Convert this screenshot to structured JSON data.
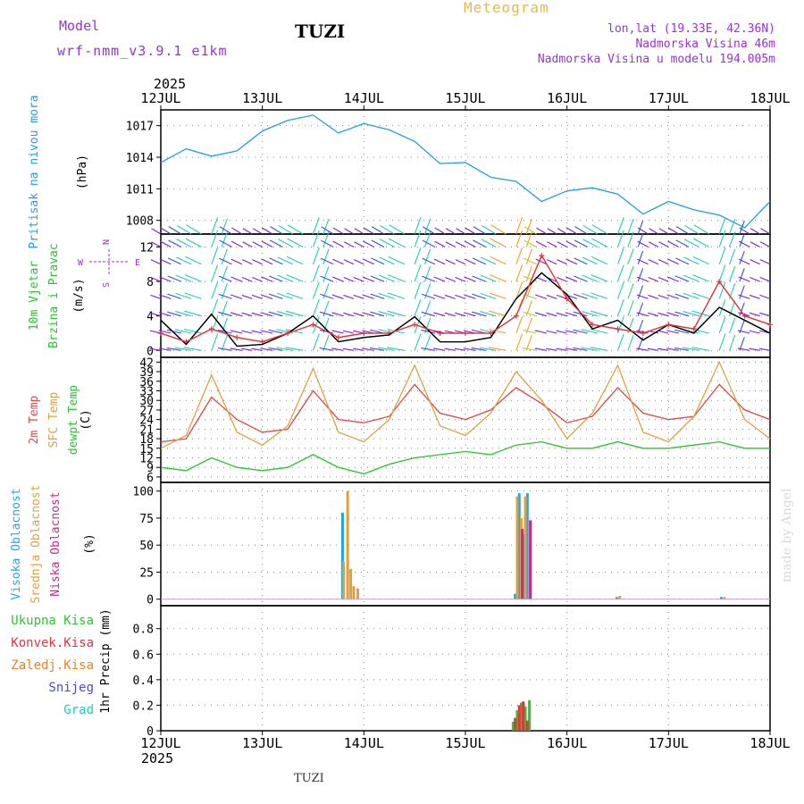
{
  "header": {
    "model_label": "Model",
    "model_name": "wrf-nmm_v3.9.1 e1km",
    "station": "TUZI",
    "title": "Meteogram",
    "coords": "lon,lat (19.33E, 42.36N)",
    "elevation": "Nadmorska Visina 46m",
    "model_elevation": "Nadmorska Visina u modelu 194.005m"
  },
  "time_axis": {
    "year": "2025",
    "labels": [
      "12JUL",
      "13JUL",
      "14JUL",
      "15JUL",
      "16JUL",
      "17JUL",
      "18JUL"
    ]
  },
  "footer": {
    "station": "TUZI",
    "watermark": "made by Angel"
  },
  "colors": {
    "pressure": "#1e9fe8",
    "wind_speed": "#000000",
    "gust": "#e8323c",
    "temp2m": "#e04545",
    "sfc_temp": "#e0a040",
    "dewpt": "#22c82a",
    "cloud_high": "#1ea8e8",
    "cloud_mid": "#e0a040",
    "cloud_low": "#d81f8a",
    "precip_total": "#33c233",
    "precip_conv": "#e8323c",
    "precip_frz": "#f07f2a",
    "precip_snow": "#4a4adf",
    "precip_hail": "#22ccb8"
  },
  "chart_data": [
    {
      "type": "line",
      "panel": "pressure",
      "ylabel_lines": [
        "Pritisak na nivou mora",
        "(hPa)"
      ],
      "yticks": [
        1008,
        1011,
        1014,
        1017
      ],
      "ylim": [
        1006.7,
        1018.5
      ],
      "grid": true,
      "series": [
        {
          "x": [
            0,
            0.25,
            0.5,
            0.75,
            1.0,
            1.25,
            1.5,
            1.75,
            2.0,
            2.25,
            2.5,
            2.75,
            3.0,
            3.25,
            3.5,
            3.75,
            4.0,
            4.25,
            4.5,
            4.75,
            5.0,
            5.25,
            5.5,
            5.75,
            6.0
          ],
          "y": [
            1013.5,
            1014.8,
            1014.1,
            1014.6,
            1016.5,
            1017.5,
            1018.0,
            1016.3,
            1017.2,
            1016.6,
            1015.5,
            1013.4,
            1013.5,
            1012.1,
            1011.7,
            1009.8,
            1010.8,
            1011.1,
            1010.5,
            1008.6,
            1009.8,
            1009.0,
            1008.5,
            1007.3,
            1009.8
          ]
        }
      ]
    },
    {
      "type": "line",
      "panel": "wind",
      "ylabel_lines": [
        "10m Vjetar",
        "Brzina i Pravac",
        "(m/s)"
      ],
      "compass": [
        "N",
        "E",
        "S",
        "W"
      ],
      "yticks": [
        0,
        4,
        8,
        12
      ],
      "ylim": [
        -0.8,
        13.5
      ],
      "grid": true,
      "series": [
        {
          "x": [
            0,
            0.25,
            0.5,
            0.75,
            1.0,
            1.25,
            1.5,
            1.75,
            2.0,
            2.25,
            2.5,
            2.75,
            3.0,
            3.25,
            3.5,
            3.75,
            4.0,
            4.25,
            4.5,
            4.75,
            5.0,
            5.25,
            5.5,
            5.75,
            6.0
          ],
          "y": [
            3.5,
            0.7,
            4.2,
            0.5,
            0.7,
            2.0,
            4.0,
            1.0,
            1.5,
            1.8,
            3.9,
            1.0,
            1.0,
            1.5,
            6.0,
            9.0,
            6.5,
            2.5,
            3.5,
            1.2,
            3.0,
            2.0,
            5.0,
            3.5,
            2.0
          ]
        },
        {
          "name": "gust",
          "x": [
            0,
            0.25,
            0.5,
            0.75,
            1.0,
            1.25,
            1.5,
            1.75,
            2.0,
            2.25,
            2.5,
            2.75,
            3.0,
            3.25,
            3.5,
            3.75,
            4.0,
            4.25,
            4.5,
            4.75,
            5.0,
            5.25,
            5.5,
            5.75,
            6.0
          ],
          "y": [
            2.0,
            1.0,
            2.5,
            1.5,
            1.0,
            2.0,
            3.0,
            1.5,
            2.0,
            2.0,
            3.0,
            2.0,
            2.0,
            2.0,
            4.0,
            11.0,
            6.0,
            3.0,
            2.5,
            2.0,
            3.0,
            2.5,
            8.0,
            4.0,
            3.0
          ]
        }
      ]
    },
    {
      "type": "line",
      "panel": "temperature",
      "ylabel_lines": [
        "2m Temp",
        "SFC Temp",
        "dewpt Temp",
        "(C)"
      ],
      "yticks": [
        6,
        9,
        12,
        15,
        18,
        21,
        24,
        27,
        30,
        33,
        36,
        39,
        42
      ],
      "ylim": [
        4.3,
        43.5
      ],
      "grid": true,
      "series": [
        {
          "name": "2m Temp",
          "x": [
            0,
            0.25,
            0.5,
            0.75,
            1.0,
            1.25,
            1.5,
            1.75,
            2.0,
            2.25,
            2.5,
            2.75,
            3.0,
            3.25,
            3.5,
            3.75,
            4.0,
            4.25,
            4.5,
            4.75,
            5.0,
            5.25,
            5.5,
            5.75,
            6.0
          ],
          "y": [
            17,
            18,
            31,
            24,
            20,
            21,
            33,
            24,
            23,
            25,
            35,
            26,
            24,
            27,
            34,
            29,
            23,
            25,
            34,
            26,
            24,
            25,
            35,
            27,
            24
          ]
        },
        {
          "name": "SFC Temp",
          "x": [
            0,
            0.25,
            0.5,
            0.75,
            1.0,
            1.25,
            1.5,
            1.75,
            2.0,
            2.25,
            2.5,
            2.75,
            3.0,
            3.25,
            3.5,
            3.75,
            4.0,
            4.25,
            4.5,
            4.75,
            5.0,
            5.25,
            5.5,
            5.75,
            6.0
          ],
          "y": [
            15,
            19,
            38,
            20,
            16,
            22,
            40,
            20,
            17,
            24,
            41,
            22,
            19,
            26,
            39,
            30,
            18,
            26,
            41,
            20,
            17,
            25,
            42,
            24,
            18
          ]
        },
        {
          "name": "dewpt Temp",
          "x": [
            0,
            0.25,
            0.5,
            0.75,
            1.0,
            1.25,
            1.5,
            1.75,
            2.0,
            2.25,
            2.5,
            2.75,
            3.0,
            3.25,
            3.5,
            3.75,
            4.0,
            4.25,
            4.5,
            4.75,
            5.0,
            5.25,
            5.5,
            5.75,
            6.0
          ],
          "y": [
            9,
            8,
            12,
            9,
            8,
            9,
            13,
            9,
            7,
            10,
            12,
            13,
            14,
            13,
            16,
            17,
            15,
            15,
            17,
            15,
            15,
            16,
            17,
            15,
            15
          ]
        }
      ]
    },
    {
      "type": "bar",
      "panel": "cloud",
      "ylabel_lines": [
        "Visoka Oblacnost",
        "Srednja Oblacnost",
        "Niska Oblacnost",
        "(%)"
      ],
      "yticks": [
        0,
        25,
        50,
        75,
        100
      ],
      "ylim": [
        -6,
        108
      ],
      "grid": true,
      "series": [
        {
          "name": "Visoka Oblacnost",
          "x": [
            1.79,
            3.49,
            3.53,
            3.57,
            3.61,
            4.49,
            5.52
          ],
          "values": [
            80,
            5,
            98,
            60,
            98,
            2,
            2
          ]
        },
        {
          "name": "Srednja Oblacnost",
          "x": [
            1.8,
            1.84,
            1.87,
            1.9,
            1.94,
            3.51,
            3.55,
            3.59,
            3.63,
            4.52,
            5.55
          ],
          "values": [
            35,
            100,
            28,
            12,
            10,
            95,
            75,
            95,
            72,
            3,
            2
          ]
        },
        {
          "name": "Niska Oblacnost",
          "x": [
            3.56,
            3.64
          ],
          "values": [
            65,
            73
          ]
        }
      ]
    },
    {
      "type": "bar",
      "panel": "precip",
      "ylabel_lines": [
        "1hr Precip (mm)"
      ],
      "legend": [
        "Ukupna Kisa",
        "Konvek.Kisa",
        "Zaledj.Kisa",
        "Snijeg",
        "Grad"
      ],
      "yticks": [
        0,
        0.2,
        0.4,
        0.6,
        0.8
      ],
      "ylim": [
        0,
        0.98
      ],
      "grid": true,
      "series": [
        {
          "name": "Ukupna Kisa",
          "x": [
            3.47,
            3.51,
            3.55,
            3.59,
            3.63
          ],
          "values": [
            0.07,
            0.16,
            0.22,
            0.19,
            0.24
          ]
        },
        {
          "name": "Konvek.Kisa",
          "x": [
            3.49,
            3.53,
            3.57,
            3.61
          ],
          "values": [
            0.1,
            0.2,
            0.23,
            0.08
          ]
        }
      ]
    }
  ]
}
